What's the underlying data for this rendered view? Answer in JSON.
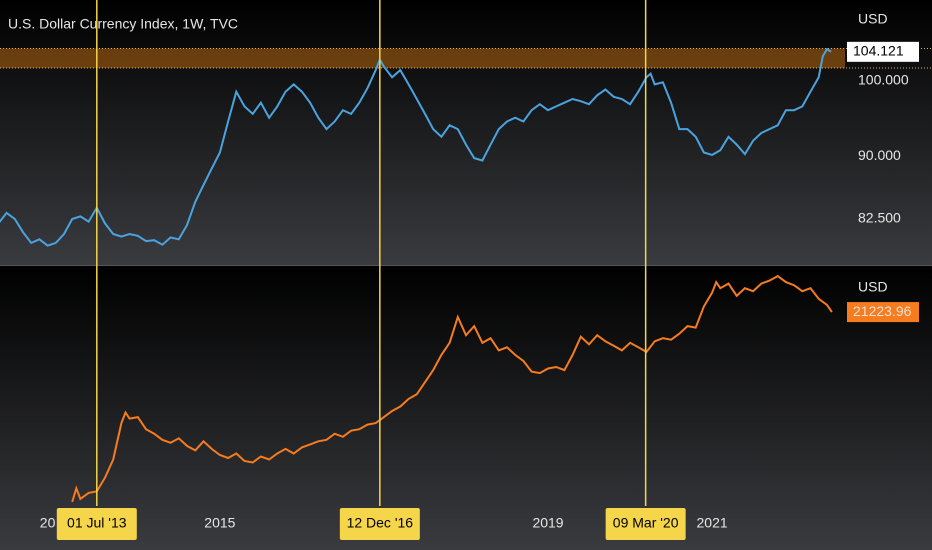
{
  "chart_data": [
    {
      "type": "line",
      "title": "U.S. Dollar Currency Index, 1W, TVC",
      "currency": "USD",
      "log": true,
      "color": "#4aa3df",
      "x": [
        2012.3,
        2012.4,
        2012.5,
        2012.6,
        2012.7,
        2012.8,
        2012.9,
        2013.0,
        2013.1,
        2013.2,
        2013.3,
        2013.4,
        2013.5,
        2013.6,
        2013.7,
        2013.8,
        2013.9,
        2014.0,
        2014.1,
        2014.2,
        2014.3,
        2014.4,
        2014.5,
        2014.6,
        2014.7,
        2014.8,
        2014.9,
        2015.0,
        2015.1,
        2015.2,
        2015.3,
        2015.4,
        2015.5,
        2015.6,
        2015.7,
        2015.8,
        2015.9,
        2016.0,
        2016.1,
        2016.2,
        2016.3,
        2016.4,
        2016.5,
        2016.6,
        2016.7,
        2016.8,
        2016.9,
        2016.95,
        2017.0,
        2017.1,
        2017.2,
        2017.3,
        2017.4,
        2017.5,
        2017.6,
        2017.7,
        2017.8,
        2017.9,
        2018.0,
        2018.1,
        2018.2,
        2018.3,
        2018.4,
        2018.5,
        2018.6,
        2018.7,
        2018.8,
        2018.9,
        2019.0,
        2019.1,
        2019.2,
        2019.3,
        2019.4,
        2019.5,
        2019.6,
        2019.7,
        2019.8,
        2019.9,
        2020.0,
        2020.1,
        2020.2,
        2020.25,
        2020.3,
        2020.4,
        2020.5,
        2020.6,
        2020.7,
        2020.8,
        2020.9,
        2021.0,
        2021.1,
        2021.2,
        2021.3,
        2021.4,
        2021.5,
        2021.6,
        2021.7,
        2021.8,
        2021.9,
        2022.0,
        2022.1,
        2022.2,
        2022.3,
        2022.35,
        2022.4,
        2022.45
      ],
      "values": [
        82.0,
        83.2,
        82.5,
        81.0,
        79.8,
        80.2,
        79.5,
        79.8,
        80.8,
        82.5,
        82.8,
        82.2,
        83.8,
        82.0,
        80.8,
        80.5,
        80.8,
        80.6,
        80.0,
        80.1,
        79.6,
        80.4,
        80.2,
        81.8,
        84.5,
        86.5,
        88.5,
        90.5,
        94.5,
        98.5,
        96.5,
        95.5,
        97.0,
        95.0,
        96.5,
        98.5,
        99.5,
        98.5,
        97.0,
        95.0,
        93.5,
        94.5,
        96.0,
        95.5,
        97.0,
        99.0,
        101.5,
        103.0,
        102.0,
        100.5,
        101.5,
        99.5,
        97.5,
        95.5,
        93.5,
        92.5,
        94.0,
        93.5,
        91.5,
        89.8,
        89.5,
        91.5,
        93.5,
        94.5,
        95.0,
        94.5,
        96.0,
        96.8,
        96.0,
        96.5,
        97.0,
        97.5,
        97.2,
        96.8,
        98.0,
        98.8,
        97.8,
        97.5,
        96.8,
        98.5,
        100.5,
        101.0,
        99.5,
        99.8,
        97.0,
        93.5,
        93.5,
        92.5,
        90.5,
        90.2,
        90.8,
        92.5,
        91.5,
        90.3,
        92.0,
        93.0,
        93.5,
        94.0,
        96.0,
        96.0,
        96.5,
        98.5,
        100.5,
        103.5,
        104.5,
        104.121
      ],
      "ylim": [
        77.6,
        111.6
      ],
      "yticks": [
        {
          "value": 82.5,
          "label": "82.500"
        },
        {
          "value": 90,
          "label": "90.000"
        },
        {
          "value": 100,
          "label": "100.000"
        }
      ],
      "zone": [
        101.8,
        104.6
      ],
      "zone_color": "#b8670e"
    },
    {
      "type": "line",
      "currency": "USD",
      "color": "#f57c1f",
      "x": [
        2013.2,
        2013.25,
        2013.3,
        2013.4,
        2013.5,
        2013.6,
        2013.7,
        2013.8,
        2013.85,
        2013.9,
        2014.0,
        2014.1,
        2014.2,
        2014.3,
        2014.4,
        2014.5,
        2014.6,
        2014.7,
        2014.8,
        2014.9,
        2015.0,
        2015.1,
        2015.2,
        2015.3,
        2015.4,
        2015.5,
        2015.6,
        2015.7,
        2015.8,
        2015.9,
        2016.0,
        2016.1,
        2016.2,
        2016.3,
        2016.4,
        2016.5,
        2016.6,
        2016.7,
        2016.8,
        2016.9,
        2017.0,
        2017.1,
        2017.2,
        2017.3,
        2017.4,
        2017.5,
        2017.6,
        2017.7,
        2017.8,
        2017.9,
        2018.0,
        2018.1,
        2018.2,
        2018.3,
        2018.4,
        2018.5,
        2018.6,
        2018.7,
        2018.8,
        2018.9,
        2019.0,
        2019.1,
        2019.2,
        2019.3,
        2019.4,
        2019.5,
        2019.6,
        2019.7,
        2019.8,
        2019.9,
        2020.0,
        2020.1,
        2020.2,
        2020.3,
        2020.4,
        2020.5,
        2020.6,
        2020.7,
        2020.8,
        2020.9,
        2021.0,
        2021.05,
        2021.1,
        2021.2,
        2021.3,
        2021.4,
        2021.5,
        2021.6,
        2021.7,
        2021.8,
        2021.9,
        2022.0,
        2022.1,
        2022.2,
        2022.3,
        2022.4,
        2022.46
      ],
      "values": [
        8700,
        9600,
        8900,
        9300,
        9400,
        10300,
        11500,
        13900,
        14600,
        14200,
        14300,
        13500,
        13200,
        12800,
        12600,
        12900,
        12400,
        12100,
        12700,
        12200,
        11800,
        11600,
        11900,
        11400,
        11300,
        11700,
        11500,
        11900,
        12200,
        11900,
        12300,
        12500,
        12700,
        12800,
        13200,
        13000,
        13400,
        13500,
        13800,
        13900,
        14300,
        14700,
        15000,
        15500,
        15800,
        16600,
        17400,
        18400,
        19200,
        20900,
        19700,
        20300,
        19200,
        19500,
        18700,
        18900,
        18400,
        18000,
        17300,
        17200,
        17500,
        17600,
        17400,
        18400,
        19600,
        19100,
        19700,
        19300,
        19000,
        18700,
        19200,
        18900,
        18600,
        19300,
        19500,
        19400,
        19800,
        20300,
        20200,
        21600,
        22500,
        23200,
        22800,
        23100,
        22300,
        22800,
        22600,
        23100,
        23300,
        23600,
        23200,
        23000,
        22600,
        22800,
        22100,
        21700,
        21223.96
      ],
      "ylim": [
        8500,
        24000
      ]
    }
  ],
  "x_axis": {
    "xlim": [
      2012.32,
      2022.62
    ],
    "xticks": [
      {
        "value": 2013,
        "label": "20"
      },
      2015,
      2019,
      2021
    ],
    "markers": [
      {
        "value": 2013.5,
        "label": "01 Jul '13"
      },
      {
        "value": 2016.95,
        "label": "12 Dec '16"
      },
      {
        "value": 2020.19,
        "label": "09 Mar '20"
      }
    ],
    "marker_color": "#f5d54a"
  }
}
